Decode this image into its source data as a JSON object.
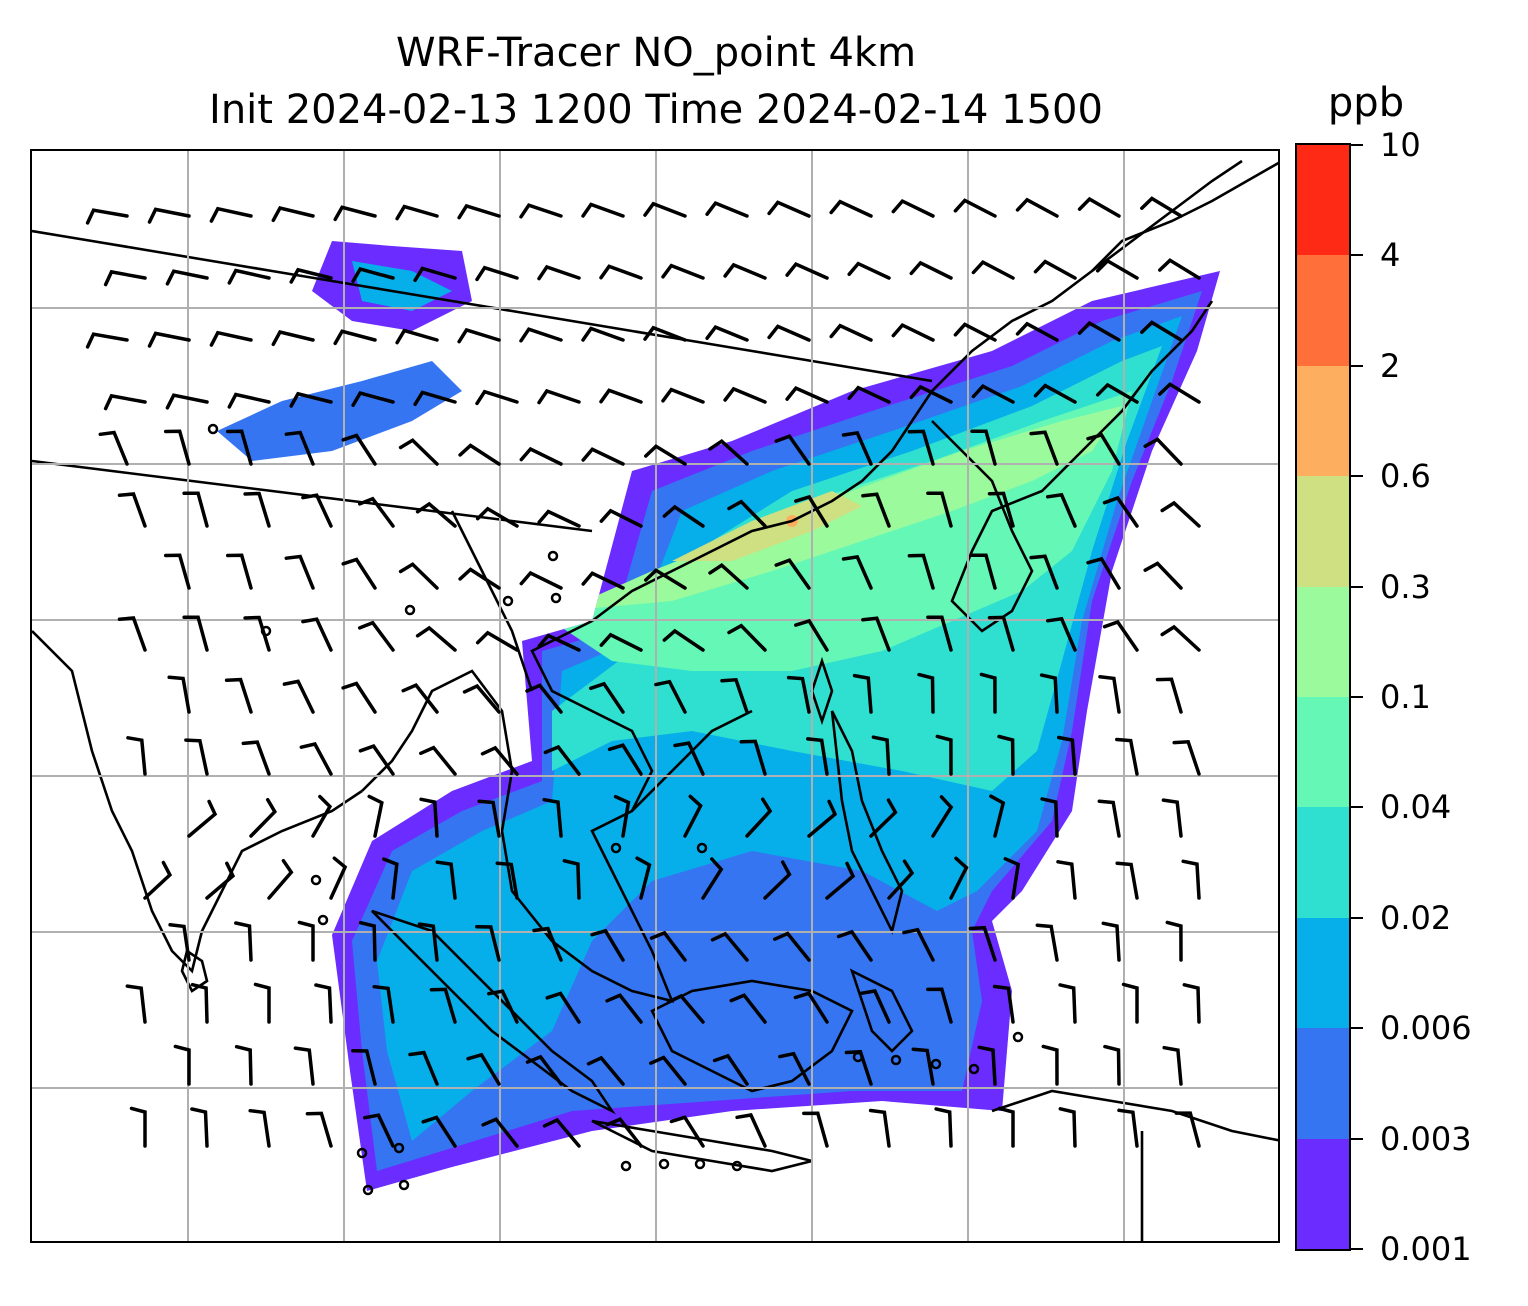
{
  "title": {
    "line1": "WRF-Tracer NO_point 4km",
    "line2": "Init 2024-02-13 1200 Time 2024-02-14 1500"
  },
  "colorbar": {
    "units": "ppb",
    "levels": [
      "0.001",
      "0.003",
      "0.006",
      "0.02",
      "0.04",
      "0.1",
      "0.3",
      "0.6",
      "2",
      "4",
      "10"
    ],
    "colors": [
      "#6a2cff",
      "#3575f2",
      "#06aeea",
      "#2fe0d0",
      "#64f7b6",
      "#9bfa9b",
      "#cfe083",
      "#fdaf5f",
      "#ff6f3a",
      "#ff2a16"
    ]
  },
  "map": {
    "gridlines": true,
    "overlay": "wind-barbs",
    "basemap": "coastlines-and-borders"
  }
}
